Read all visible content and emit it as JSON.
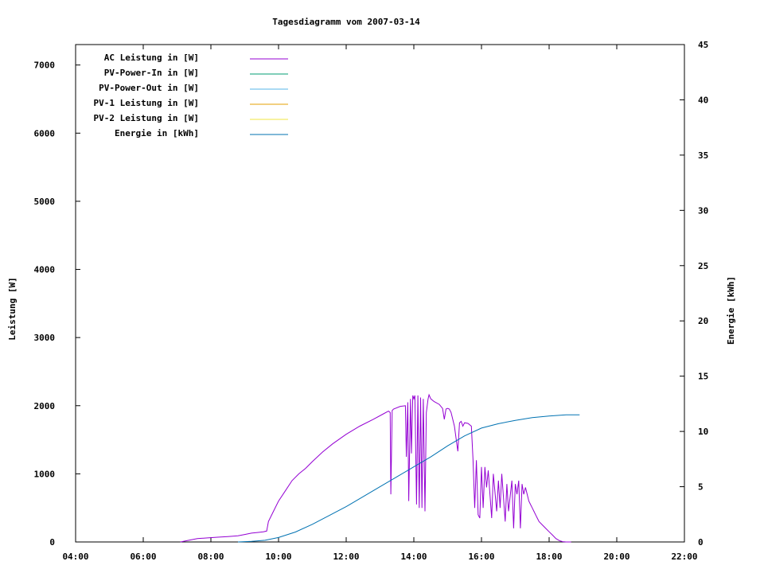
{
  "chart_data": {
    "type": "line",
    "title": "Tagesdiagramm vom 2007-03-14",
    "xlabel": "",
    "ylabel": "Leistung [W]",
    "y2label": "Energie [kWh]",
    "xlim": [
      4,
      22
    ],
    "ylim": [
      0,
      7300
    ],
    "y2lim": [
      0,
      45
    ],
    "x_ticks": [
      "04:00",
      "06:00",
      "08:00",
      "10:00",
      "12:00",
      "14:00",
      "16:00",
      "18:00",
      "20:00",
      "22:00"
    ],
    "y_ticks": [
      "0",
      "1000",
      "2000",
      "3000",
      "4000",
      "5000",
      "6000",
      "7000"
    ],
    "y2_ticks": [
      "0",
      "5",
      "10",
      "15",
      "20",
      "25",
      "30",
      "35",
      "40",
      "45"
    ],
    "legend_position": "top-left",
    "legend": [
      {
        "name": "AC Leistung in [W]",
        "color": "#9400d3"
      },
      {
        "name": "PV-Power-In in [W]",
        "color": "#009e73"
      },
      {
        "name": "PV-Power-Out in [W]",
        "color": "#56b4e9"
      },
      {
        "name": "PV-1 Leistung in [W]",
        "color": "#e69f00"
      },
      {
        "name": "PV-2 Leistung in [W]",
        "color": "#f0e442"
      },
      {
        "name": "Energie in [kWh]",
        "color": "#0072b2"
      }
    ],
    "series": [
      {
        "name": "AC Leistung in [W]",
        "axis": "left",
        "color": "#9400d3",
        "x": [
          7.1,
          7.3,
          7.6,
          7.9,
          8.2,
          8.5,
          8.8,
          9.0,
          9.2,
          9.4,
          9.55,
          9.65,
          9.7,
          9.85,
          10.0,
          10.2,
          10.4,
          10.6,
          10.8,
          11.0,
          11.3,
          11.6,
          12.0,
          12.4,
          12.8,
          13.1,
          13.25,
          13.3,
          13.32,
          13.36,
          13.4,
          13.6,
          13.75,
          13.78,
          13.82,
          13.85,
          13.9,
          13.93,
          13.97,
          14.0,
          14.03,
          14.08,
          14.12,
          14.16,
          14.2,
          14.24,
          14.28,
          14.33,
          14.37,
          14.42,
          14.45,
          14.5,
          14.6,
          14.75,
          14.85,
          14.9,
          14.95,
          15.0,
          15.05,
          15.1,
          15.2,
          15.3,
          15.35,
          15.4,
          15.45,
          15.5,
          15.6,
          15.7,
          15.75,
          15.8,
          15.85,
          15.9,
          15.95,
          16.0,
          16.05,
          16.1,
          16.15,
          16.2,
          16.3,
          16.35,
          16.45,
          16.5,
          16.55,
          16.6,
          16.7,
          16.75,
          16.8,
          16.9,
          16.95,
          17.0,
          17.05,
          17.1,
          17.15,
          17.2,
          17.25,
          17.3,
          17.4,
          17.45,
          17.5,
          17.55,
          17.6,
          17.65,
          17.7,
          17.8,
          17.9,
          18.0,
          18.1,
          18.2,
          18.3,
          18.4,
          18.5,
          18.6,
          18.65
        ],
        "values": [
          0,
          20,
          50,
          60,
          70,
          80,
          90,
          110,
          130,
          140,
          150,
          160,
          300,
          450,
          600,
          750,
          900,
          1000,
          1080,
          1180,
          1320,
          1440,
          1580,
          1700,
          1800,
          1880,
          1920,
          1900,
          700,
          1930,
          1950,
          1990,
          2000,
          1250,
          2050,
          600,
          2100,
          1300,
          2150,
          2100,
          2150,
          550,
          2150,
          500,
          2120,
          500,
          2100,
          450,
          1900,
          2100,
          2160,
          2100,
          2060,
          2020,
          1960,
          1800,
          1950,
          1960,
          1950,
          1900,
          1700,
          1330,
          1750,
          1770,
          1700,
          1750,
          1740,
          1700,
          1200,
          500,
          1200,
          400,
          350,
          1100,
          500,
          1100,
          800,
          1050,
          350,
          1000,
          450,
          900,
          500,
          1000,
          300,
          850,
          450,
          900,
          200,
          850,
          700,
          900,
          200,
          850,
          700,
          800,
          600,
          550,
          500,
          450,
          400,
          350,
          300,
          250,
          200,
          150,
          100,
          50,
          20,
          5,
          0,
          0,
          0
        ]
      },
      {
        "name": "Energie in [kWh]",
        "axis": "right",
        "color": "#0072b2",
        "x": [
          8.8,
          9.2,
          9.6,
          10.0,
          10.5,
          11.0,
          11.5,
          12.0,
          12.5,
          13.0,
          13.5,
          14.0,
          14.5,
          15.0,
          15.5,
          16.0,
          16.5,
          17.0,
          17.5,
          18.0,
          18.5,
          18.9
        ],
        "values": [
          0,
          0.05,
          0.15,
          0.4,
          0.9,
          1.6,
          2.4,
          3.2,
          4.1,
          5.0,
          5.9,
          6.8,
          7.7,
          8.7,
          9.6,
          10.3,
          10.7,
          11.0,
          11.25,
          11.4,
          11.5,
          11.5
        ]
      }
    ]
  }
}
